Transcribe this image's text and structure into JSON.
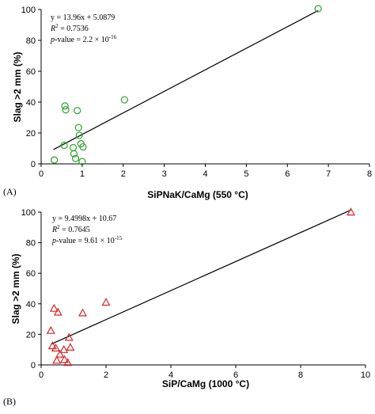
{
  "chart_data": [
    {
      "type": "scatter",
      "panel_label": "(A)",
      "xlabel": "SiPNaK/CaMg (550 °C)",
      "ylabel": "Slag >2 mm (%)",
      "xlim": [
        0,
        8
      ],
      "ylim": [
        0,
        100
      ],
      "x_ticks": [
        0,
        1,
        2,
        3,
        4,
        5,
        6,
        7,
        8
      ],
      "y_ticks": [
        0,
        20,
        40,
        60,
        80,
        100
      ],
      "marker": "circle",
      "marker_color": "#2ca02c",
      "grid": false,
      "points": [
        {
          "x": 0.32,
          "y": 2.5
        },
        {
          "x": 0.56,
          "y": 12.0
        },
        {
          "x": 0.58,
          "y": 37.5
        },
        {
          "x": 0.6,
          "y": 35.0
        },
        {
          "x": 0.78,
          "y": 10.5
        },
        {
          "x": 0.8,
          "y": 6.5
        },
        {
          "x": 0.84,
          "y": 3.5
        },
        {
          "x": 0.88,
          "y": 34.5
        },
        {
          "x": 0.91,
          "y": 23.5
        },
        {
          "x": 0.93,
          "y": 18.5
        },
        {
          "x": 0.97,
          "y": 13.0
        },
        {
          "x": 1.02,
          "y": 11.0
        },
        {
          "x": 1.0,
          "y": 1.5
        },
        {
          "x": 2.03,
          "y": 41.5
        },
        {
          "x": 6.75,
          "y": 100.5
        }
      ],
      "trendline": {
        "slope": 13.96,
        "intercept": 5.0879,
        "x_range": [
          0.3,
          6.75
        ]
      },
      "annotation": {
        "equation": "y = 13.96x + 5.0879",
        "r2_label": "R",
        "r2_sup": "2",
        "r2_value": " = 0.7536",
        "p_label": "p",
        "p_value": "-value = 2.2 × 10",
        "p_exp": "-16"
      }
    },
    {
      "type": "scatter",
      "panel_label": "(B)",
      "xlabel": "SiP/CaMg (1000 °C)",
      "ylabel": "Slag >2 mm (%)",
      "xlim": [
        0,
        10
      ],
      "ylim": [
        0,
        100
      ],
      "x_ticks": [
        0,
        2,
        4,
        6,
        8,
        10
      ],
      "y_ticks": [
        0,
        20,
        40,
        60,
        80,
        100
      ],
      "marker": "triangle",
      "marker_color": "#d62728",
      "grid": false,
      "points": [
        {
          "x": 0.3,
          "y": 22.5
        },
        {
          "x": 0.35,
          "y": 12.5
        },
        {
          "x": 0.4,
          "y": 37.0
        },
        {
          "x": 0.45,
          "y": 11.0
        },
        {
          "x": 0.48,
          "y": 3.0
        },
        {
          "x": 0.52,
          "y": 34.5
        },
        {
          "x": 0.58,
          "y": 7.0
        },
        {
          "x": 0.7,
          "y": 10.0
        },
        {
          "x": 0.72,
          "y": 3.5
        },
        {
          "x": 0.82,
          "y": 1.5
        },
        {
          "x": 0.86,
          "y": 18.0
        },
        {
          "x": 0.9,
          "y": 11.5
        },
        {
          "x": 1.28,
          "y": 34.0
        },
        {
          "x": 2.0,
          "y": 41.0
        },
        {
          "x": 9.55,
          "y": 100.0
        }
      ],
      "trendline": {
        "slope": 9.4998,
        "intercept": 10.67,
        "x_range": [
          0.3,
          9.55
        ]
      },
      "annotation": {
        "equation": "y = 9.4998x + 10.67",
        "r2_label": "R",
        "r2_sup": "2",
        "r2_value": " = 0.7645",
        "p_label": "p",
        "p_value": "-value = 9.61 × 10",
        "p_exp": "-15"
      }
    }
  ]
}
